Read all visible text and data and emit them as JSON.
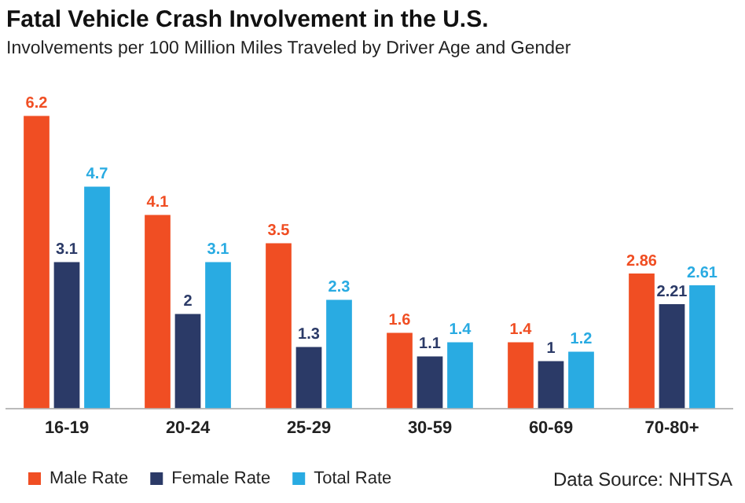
{
  "chart_data": {
    "type": "bar",
    "title": "Fatal Vehicle Crash Involvement in the U.S.",
    "subtitle": "Involvements per 100 Million Miles Traveled by Driver Age and Gender",
    "categories": [
      "16-19",
      "20-24",
      "25-29",
      "30-59",
      "60-69",
      "70-80+"
    ],
    "series": [
      {
        "name": "Male Rate",
        "color": "#f04e23",
        "values": [
          6.2,
          4.1,
          3.5,
          1.6,
          1.4,
          2.86
        ]
      },
      {
        "name": "Female Rate",
        "color": "#2b3a67",
        "values": [
          3.1,
          2,
          1.3,
          1.1,
          1,
          2.21
        ]
      },
      {
        "name": "Total Rate",
        "color": "#29abe2",
        "values": [
          4.7,
          3.1,
          2.3,
          1.4,
          1.2,
          2.61
        ]
      }
    ],
    "data_labels": true,
    "tick_labels": "x",
    "grid": false,
    "legend": "bottom left",
    "annotations": [
      "Data Source: NHTSA"
    ]
  }
}
